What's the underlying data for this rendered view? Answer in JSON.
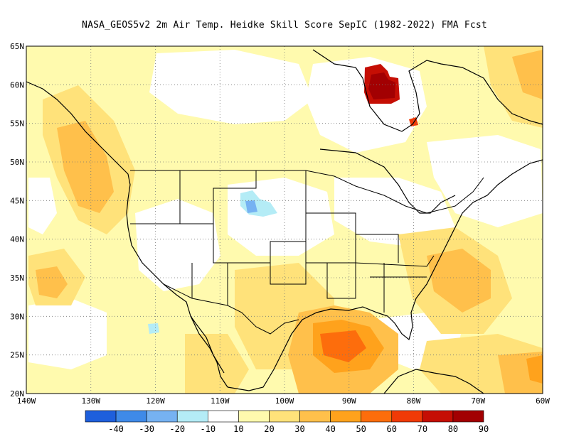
{
  "title": "NASA_GEOS5v2  2m Air Temp. Heidke Skill Score SepIC (1982-2022) FMA Fcst",
  "map": {
    "lon_range": [
      -140,
      -60
    ],
    "lat_range": [
      20,
      65
    ],
    "lat_ticks": [
      {
        "value": 65,
        "label": "65N"
      },
      {
        "value": 60,
        "label": "60N"
      },
      {
        "value": 55,
        "label": "55N"
      },
      {
        "value": 50,
        "label": "50N"
      },
      {
        "value": 45,
        "label": "45N"
      },
      {
        "value": 40,
        "label": "40N"
      },
      {
        "value": 35,
        "label": "35N"
      },
      {
        "value": 30,
        "label": "30N"
      },
      {
        "value": 25,
        "label": "25N"
      },
      {
        "value": 20,
        "label": "20N"
      }
    ],
    "lon_ticks": [
      {
        "value": -140,
        "label": "140W"
      },
      {
        "value": -130,
        "label": "130W"
      },
      {
        "value": -120,
        "label": "120W"
      },
      {
        "value": -110,
        "label": "110W"
      },
      {
        "value": -100,
        "label": "100W"
      },
      {
        "value": -90,
        "label": "90W"
      },
      {
        "value": -80,
        "label": "80W"
      },
      {
        "value": -70,
        "label": "70W"
      },
      {
        "value": -60,
        "label": "60W"
      }
    ],
    "grid": "dotted"
  },
  "colorbar": {
    "colors": [
      "#1e5fdc",
      "#3f8ae8",
      "#76b2f2",
      "#b4ecf6",
      "#ffffff",
      "#fffaae",
      "#ffe27a",
      "#ffc04b",
      "#ffa21c",
      "#fd6d0c",
      "#f03a07",
      "#c50e04",
      "#a20002"
    ],
    "labels": [
      "-40",
      "-30",
      "-20",
      "-10",
      "10",
      "20",
      "30",
      "40",
      "50",
      "60",
      "70",
      "80",
      "90"
    ]
  }
}
